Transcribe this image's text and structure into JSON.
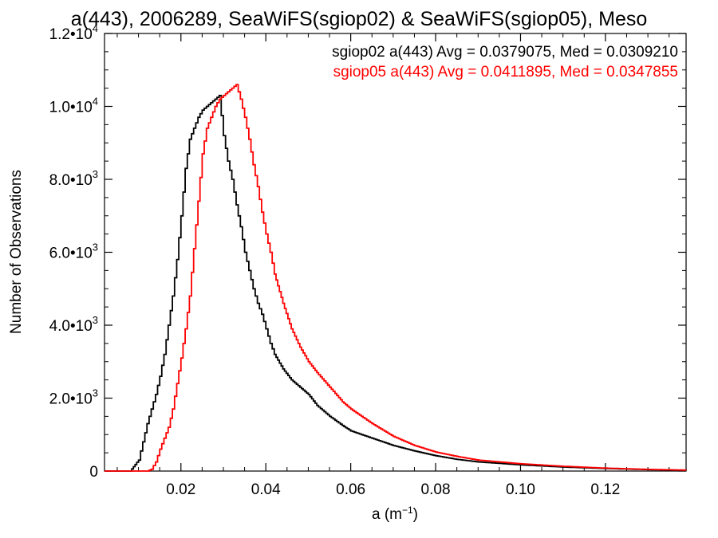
{
  "chart_data": {
    "type": "line",
    "title": "a(443), 2006289, SeaWiFS(sgiop02) & SeaWiFS(sgiop05), Meso",
    "xlabel": "a (m⁻¹)",
    "ylabel": "Number of Observations",
    "xlim": [
      0.002,
      0.139
    ],
    "ylim": [
      0,
      12000
    ],
    "x_ticks": [
      0.02,
      0.04,
      0.06,
      0.08,
      0.1,
      0.12
    ],
    "x_tick_labels": [
      "0.02",
      "0.04",
      "0.06",
      "0.08",
      "0.10",
      "0.12"
    ],
    "y_ticks": [
      0,
      2000,
      4000,
      6000,
      8000,
      10000,
      12000
    ],
    "y_tick_labels": [
      {
        "mant": "0",
        "exp": ""
      },
      {
        "mant": "2.0•10",
        "exp": "3"
      },
      {
        "mant": "4.0•10",
        "exp": "3"
      },
      {
        "mant": "6.0•10",
        "exp": "3"
      },
      {
        "mant": "8.0•10",
        "exp": "3"
      },
      {
        "mant": "1.0•10",
        "exp": "4"
      },
      {
        "mant": "1.2•10",
        "exp": "4"
      }
    ],
    "grid": false,
    "legend_position": "top-right",
    "style": "step",
    "series": [
      {
        "name": "sgiop02 a(443) Avg = 0.0379075, Med = 0.0309210",
        "color": "#000000",
        "x": [
          0.002,
          0.008,
          0.01,
          0.011,
          0.012,
          0.013,
          0.014,
          0.015,
          0.016,
          0.017,
          0.018,
          0.019,
          0.02,
          0.021,
          0.022,
          0.023,
          0.024,
          0.025,
          0.026,
          0.027,
          0.028,
          0.029,
          0.03,
          0.031,
          0.032,
          0.033,
          0.034,
          0.035,
          0.036,
          0.037,
          0.038,
          0.039,
          0.04,
          0.041,
          0.042,
          0.044,
          0.046,
          0.048,
          0.05,
          0.052,
          0.055,
          0.058,
          0.06,
          0.065,
          0.07,
          0.075,
          0.08,
          0.085,
          0.09,
          0.1,
          0.11,
          0.12,
          0.13,
          0.139
        ],
        "y": [
          0,
          0,
          300,
          800,
          1300,
          1700,
          2100,
          2600,
          3200,
          4000,
          4800,
          5800,
          7000,
          8300,
          9100,
          9400,
          9700,
          9900,
          10000,
          10100,
          10200,
          10300,
          9200,
          8500,
          8000,
          7300,
          6700,
          6000,
          5500,
          5000,
          4600,
          4300,
          3900,
          3500,
          3200,
          2800,
          2500,
          2300,
          2100,
          1800,
          1500,
          1250,
          1100,
          900,
          700,
          550,
          420,
          320,
          250,
          170,
          110,
          70,
          40,
          20
        ]
      },
      {
        "name": "sgiop05 a(443) Avg = 0.0411895, Med = 0.0347855",
        "color": "#ff0000",
        "x": [
          0.002,
          0.012,
          0.013,
          0.014,
          0.015,
          0.016,
          0.017,
          0.018,
          0.019,
          0.02,
          0.021,
          0.022,
          0.023,
          0.024,
          0.025,
          0.026,
          0.027,
          0.028,
          0.029,
          0.03,
          0.031,
          0.032,
          0.033,
          0.034,
          0.035,
          0.036,
          0.037,
          0.038,
          0.039,
          0.04,
          0.041,
          0.042,
          0.044,
          0.046,
          0.048,
          0.05,
          0.052,
          0.055,
          0.058,
          0.06,
          0.065,
          0.07,
          0.075,
          0.08,
          0.085,
          0.09,
          0.1,
          0.11,
          0.12,
          0.13,
          0.139
        ],
        "y": [
          0,
          0,
          50,
          250,
          600,
          900,
          1200,
          1700,
          2400,
          3100,
          3900,
          4800,
          6100,
          7400,
          8700,
          9400,
          9700,
          10000,
          10200,
          10300,
          10400,
          10500,
          10600,
          10200,
          9700,
          9100,
          8400,
          7800,
          7100,
          6500,
          6000,
          5400,
          4600,
          3900,
          3400,
          3000,
          2700,
          2300,
          1900,
          1700,
          1300,
          950,
          700,
          520,
          400,
          300,
          200,
          130,
          80,
          45,
          25
        ]
      }
    ]
  }
}
